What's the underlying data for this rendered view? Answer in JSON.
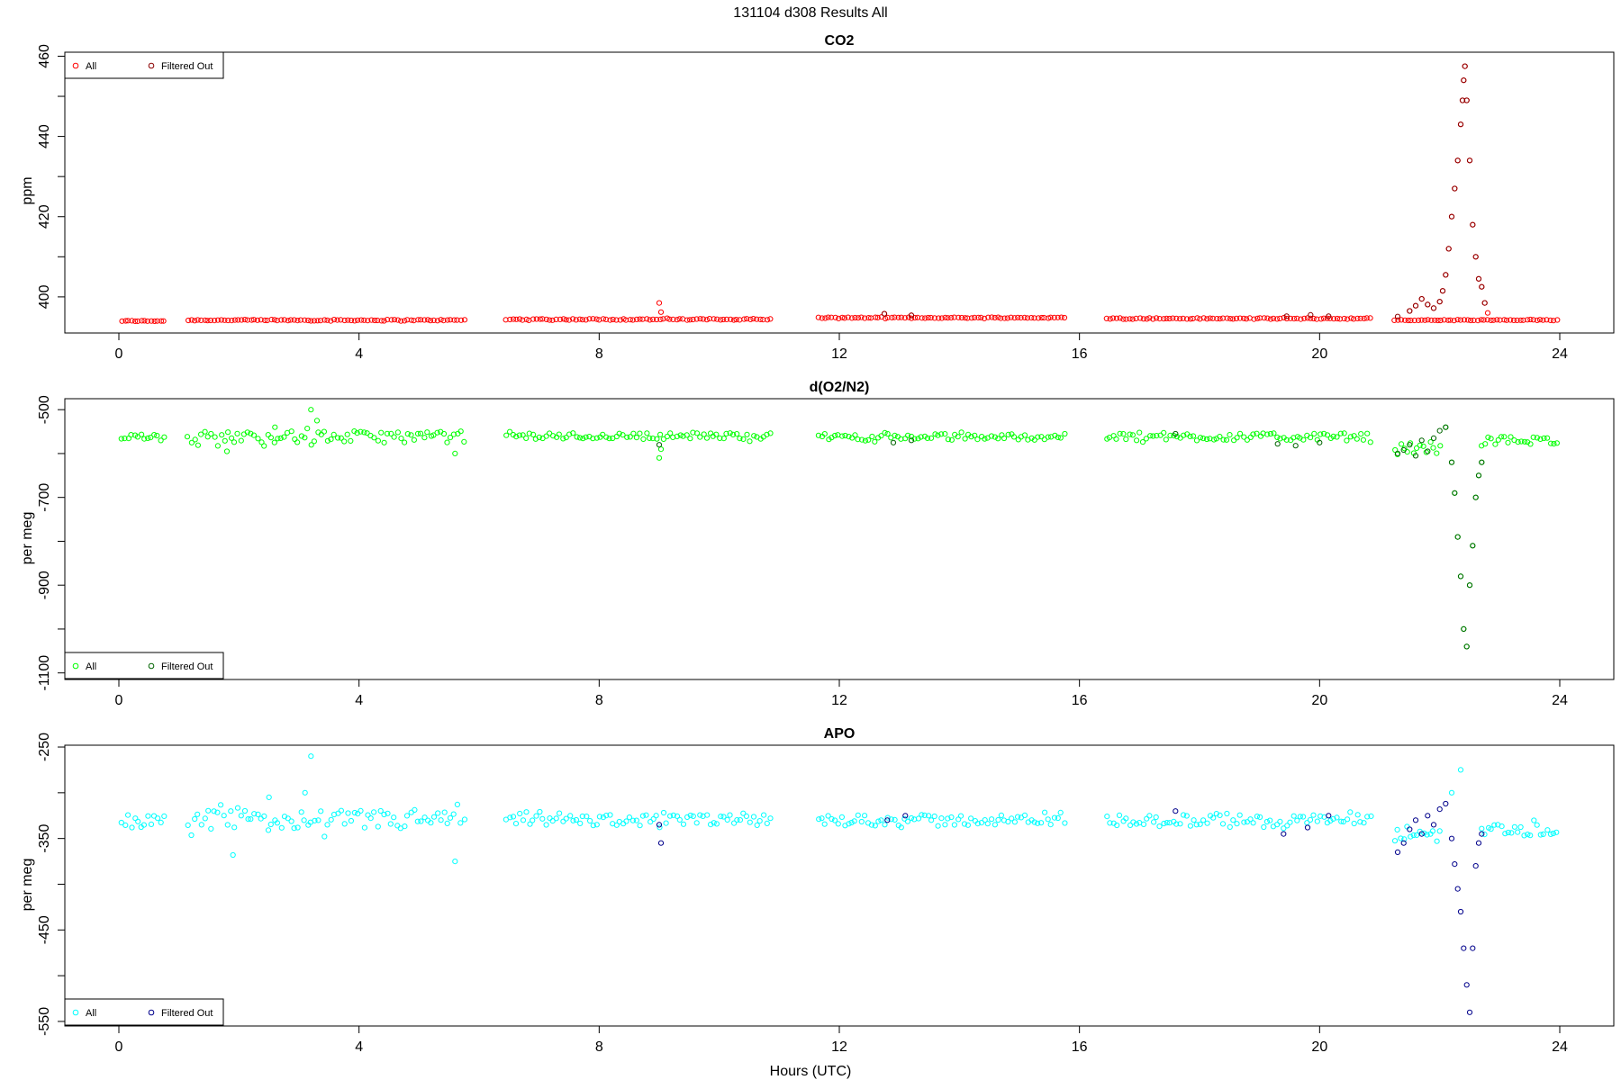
{
  "figure": {
    "title": "131104   d308   Results All",
    "xlabel": "Hours (UTC)"
  },
  "chart_data": [
    {
      "type": "scatter",
      "title": "CO2",
      "xlabel": "",
      "ylabel": "ppm",
      "xlim": [
        -0.9,
        24.9
      ],
      "ylim": [
        391,
        461
      ],
      "xticks": [
        0,
        4,
        8,
        12,
        16,
        20,
        24
      ],
      "yticks": [
        400,
        420,
        440,
        460
      ],
      "legend_position": "top-left",
      "series": [
        {
          "name": "All",
          "color": "#ff0000",
          "shape": "circle-open",
          "segments": [
            [
              0.05,
              0.75,
              394.0,
              0.15,
              0.0
            ],
            [
              1.15,
              5.75,
              394.2,
              0.25,
              0.0
            ],
            [
              6.45,
              10.85,
              394.4,
              0.3,
              0.0
            ],
            [
              11.65,
              15.75,
              394.8,
              0.2,
              0.0
            ],
            [
              16.45,
              20.85,
              394.6,
              0.25,
              0.0
            ],
            [
              21.25,
              23.95,
              394.2,
              0.2,
              0.0
            ]
          ],
          "points": [
            [
              9.0,
              398.5
            ],
            [
              9.03,
              396.2
            ],
            [
              12.75,
              395.8
            ],
            [
              13.2,
              395.4
            ],
            [
              21.5,
              396.5
            ],
            [
              21.6,
              397.8
            ],
            [
              21.7,
              399.5
            ],
            [
              21.8,
              398.1
            ],
            [
              21.9,
              397.2
            ],
            [
              22.0,
              398.8
            ],
            [
              22.05,
              401.5
            ],
            [
              22.1,
              405.5
            ],
            [
              22.15,
              412.0
            ],
            [
              22.2,
              420.0
            ],
            [
              22.25,
              427.0
            ],
            [
              22.3,
              434.0
            ],
            [
              22.35,
              443.0
            ],
            [
              22.38,
              449.0
            ],
            [
              22.4,
              454.0
            ],
            [
              22.42,
              457.5
            ],
            [
              22.45,
              449.0
            ],
            [
              22.5,
              434.0
            ],
            [
              22.55,
              418.0
            ],
            [
              22.6,
              410.0
            ],
            [
              22.65,
              404.5
            ],
            [
              22.7,
              402.5
            ],
            [
              22.75,
              398.5
            ],
            [
              22.8,
              396.0
            ]
          ]
        },
        {
          "name": "Filtered Out",
          "color": "#8b0000",
          "shape": "circle-open",
          "points": [
            [
              12.75,
              395.8
            ],
            [
              13.2,
              395.4
            ],
            [
              19.45,
              395.2
            ],
            [
              19.85,
              395.5
            ],
            [
              20.15,
              395.2
            ],
            [
              21.3,
              395.1
            ],
            [
              21.5,
              396.5
            ],
            [
              21.6,
              397.8
            ],
            [
              21.7,
              399.5
            ],
            [
              21.8,
              398.1
            ],
            [
              21.9,
              397.2
            ],
            [
              22.0,
              398.8
            ],
            [
              22.05,
              401.5
            ],
            [
              22.1,
              405.5
            ],
            [
              22.15,
              412.0
            ],
            [
              22.2,
              420.0
            ],
            [
              22.25,
              427.0
            ],
            [
              22.3,
              434.0
            ],
            [
              22.35,
              443.0
            ],
            [
              22.38,
              449.0
            ],
            [
              22.4,
              454.0
            ],
            [
              22.42,
              457.5
            ],
            [
              22.45,
              449.0
            ],
            [
              22.5,
              434.0
            ],
            [
              22.55,
              418.0
            ],
            [
              22.6,
              410.0
            ],
            [
              22.65,
              404.5
            ],
            [
              22.7,
              402.5
            ],
            [
              22.75,
              398.5
            ]
          ]
        }
      ]
    },
    {
      "type": "scatter",
      "title": "d(O2/N2)",
      "xlabel": "",
      "ylabel": "per meg",
      "xlim": [
        -0.9,
        24.9
      ],
      "ylim": [
        -1115,
        -475
      ],
      "xticks": [
        0,
        4,
        8,
        12,
        16,
        20,
        24
      ],
      "yticks": [
        -500,
        -700,
        -900,
        -1100
      ],
      "legend_position": "bottom-left",
      "series": [
        {
          "name": "All",
          "color": "#00ff00",
          "shape": "circle-open",
          "segments": [
            [
              0.05,
              0.75,
              -560,
              12,
              0
            ],
            [
              1.15,
              5.75,
              -562,
              22,
              0
            ],
            [
              6.45,
              10.85,
              -560,
              12,
              0
            ],
            [
              11.65,
              15.75,
              -562,
              12,
              0
            ],
            [
              16.45,
              20.85,
              -562,
              14,
              0
            ],
            [
              21.25,
              22.0,
              -590,
              20,
              0
            ],
            [
              22.7,
              23.95,
              -570,
              15,
              0
            ]
          ],
          "points": [
            [
              1.8,
              -595
            ],
            [
              2.6,
              -540
            ],
            [
              3.2,
              -500
            ],
            [
              3.3,
              -525
            ],
            [
              5.6,
              -600
            ],
            [
              9.0,
              -610
            ],
            [
              9.03,
              -590
            ],
            [
              22.1,
              -540
            ],
            [
              22.2,
              -620
            ],
            [
              22.25,
              -690
            ],
            [
              22.3,
              -790
            ],
            [
              22.35,
              -880
            ],
            [
              22.4,
              -1000
            ],
            [
              22.45,
              -1040
            ],
            [
              22.5,
              -900
            ],
            [
              22.55,
              -810
            ],
            [
              22.6,
              -700
            ],
            [
              22.65,
              -650
            ],
            [
              22.7,
              -620
            ]
          ]
        },
        {
          "name": "Filtered Out",
          "color": "#006400",
          "shape": "circle-open",
          "points": [
            [
              9.0,
              -580
            ],
            [
              12.9,
              -575
            ],
            [
              13.2,
              -570
            ],
            [
              17.6,
              -555
            ],
            [
              19.3,
              -578
            ],
            [
              19.6,
              -582
            ],
            [
              20.0,
              -575
            ],
            [
              21.3,
              -600
            ],
            [
              21.4,
              -592
            ],
            [
              21.5,
              -580
            ],
            [
              21.6,
              -605
            ],
            [
              21.7,
              -570
            ],
            [
              21.8,
              -595
            ],
            [
              21.9,
              -565
            ],
            [
              22.0,
              -548
            ],
            [
              22.1,
              -540
            ],
            [
              22.2,
              -620
            ],
            [
              22.25,
              -690
            ],
            [
              22.3,
              -790
            ],
            [
              22.35,
              -880
            ],
            [
              22.4,
              -1000
            ],
            [
              22.45,
              -1040
            ],
            [
              22.5,
              -900
            ],
            [
              22.55,
              -810
            ],
            [
              22.6,
              -700
            ],
            [
              22.65,
              -650
            ],
            [
              22.7,
              -620
            ]
          ]
        }
      ]
    },
    {
      "type": "scatter",
      "title": "APO",
      "xlabel": "",
      "ylabel": "per meg",
      "xlim": [
        -0.9,
        24.9
      ],
      "ylim": [
        -555,
        -248
      ],
      "xticks": [
        0,
        4,
        8,
        12,
        16,
        20,
        24
      ],
      "yticks": [
        -250,
        -350,
        -450,
        -550
      ],
      "legend_position": "bottom-left",
      "series": [
        {
          "name": "All",
          "color": "#00ffff",
          "shape": "circle-open",
          "segments": [
            [
              0.05,
              0.75,
              -330,
              10,
              0
            ],
            [
              1.15,
              5.75,
              -330,
              18,
              0
            ],
            [
              6.45,
              10.85,
              -330,
              10,
              0
            ],
            [
              11.65,
              15.75,
              -330,
              10,
              0
            ],
            [
              16.45,
              20.85,
              -330,
              10,
              0
            ],
            [
              21.25,
              22.0,
              -345,
              15,
              0
            ],
            [
              22.7,
              23.95,
              -340,
              12,
              0
            ]
          ],
          "points": [
            [
              1.9,
              -368
            ],
            [
              2.5,
              -305
            ],
            [
              3.1,
              -300
            ],
            [
              3.2,
              -260
            ],
            [
              5.6,
              -375
            ],
            [
              22.2,
              -300
            ],
            [
              22.35,
              -275
            ]
          ]
        },
        {
          "name": "Filtered Out",
          "color": "#00008b",
          "shape": "circle-open",
          "points": [
            [
              9.0,
              -335
            ],
            [
              9.03,
              -355
            ],
            [
              12.8,
              -330
            ],
            [
              13.1,
              -325
            ],
            [
              17.6,
              -320
            ],
            [
              19.4,
              -345
            ],
            [
              19.8,
              -338
            ],
            [
              20.15,
              -325
            ],
            [
              21.3,
              -365
            ],
            [
              21.4,
              -355
            ],
            [
              21.5,
              -340
            ],
            [
              21.6,
              -330
            ],
            [
              21.7,
              -345
            ],
            [
              21.8,
              -325
            ],
            [
              21.9,
              -335
            ],
            [
              22.0,
              -318
            ],
            [
              22.1,
              -312
            ],
            [
              22.2,
              -350
            ],
            [
              22.25,
              -378
            ],
            [
              22.3,
              -405
            ],
            [
              22.35,
              -430
            ],
            [
              22.4,
              -470
            ],
            [
              22.45,
              -510
            ],
            [
              22.5,
              -540
            ],
            [
              22.55,
              -470
            ],
            [
              22.6,
              -380
            ],
            [
              22.65,
              -355
            ],
            [
              22.7,
              -345
            ]
          ]
        }
      ]
    }
  ]
}
